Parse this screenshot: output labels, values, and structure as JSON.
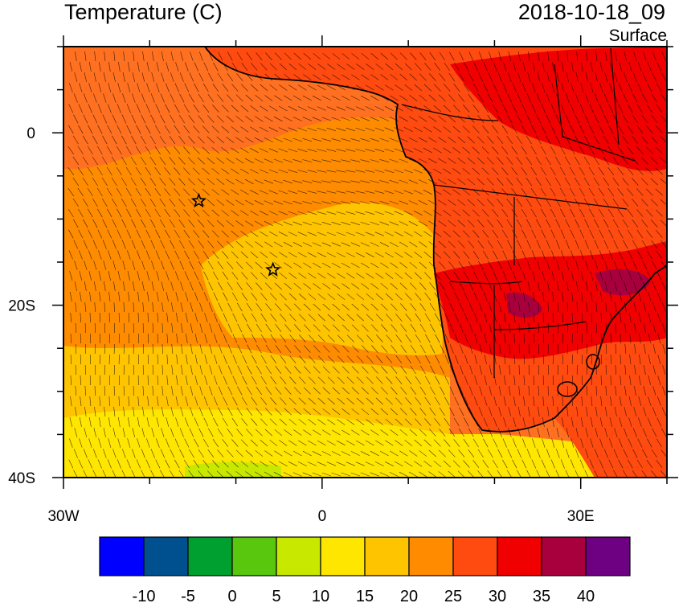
{
  "title": "Temperature (C)",
  "datetime": "2018-10-18_09",
  "level": "Surface",
  "axes": {
    "x_ticks": [
      {
        "value": -30,
        "label": "30W"
      },
      {
        "value": 0,
        "label": "0"
      },
      {
        "value": 30,
        "label": "30E"
      }
    ],
    "y_ticks": [
      {
        "value": 0,
        "label": "0"
      },
      {
        "value": -20,
        "label": "20S"
      },
      {
        "value": -40,
        "label": "40S"
      }
    ],
    "lon_range": [
      -30,
      40
    ],
    "lat_range": [
      -40,
      10
    ],
    "minor_tick_interval_lon": 10,
    "minor_tick_interval_lat": 5
  },
  "colorbar": {
    "labels": [
      "-10",
      "-5",
      "0",
      "5",
      "10",
      "15",
      "20",
      "25",
      "30",
      "35",
      "40"
    ],
    "colors": [
      "#0000ff",
      "#00508f",
      "#00a030",
      "#5ac70f",
      "#c8e800",
      "#ffe600",
      "#ffc400",
      "#ff8c00",
      "#ff4a10",
      "#f00000",
      "#a8003c",
      "#6e0082"
    ]
  },
  "markers": [
    {
      "type": "star",
      "lon": -14.3,
      "lat": -7.9
    },
    {
      "type": "star",
      "lon": -5.7,
      "lat": -15.9
    }
  ],
  "colors": {
    "warm_ocean": "#ff7020",
    "mid_ocean": "#ff8c00",
    "cool_ocean": "#ffc400",
    "cold_south": "#ffe600",
    "hot_land": "#f00000",
    "very_hot": "#a8003c",
    "coast": "#000000"
  }
}
